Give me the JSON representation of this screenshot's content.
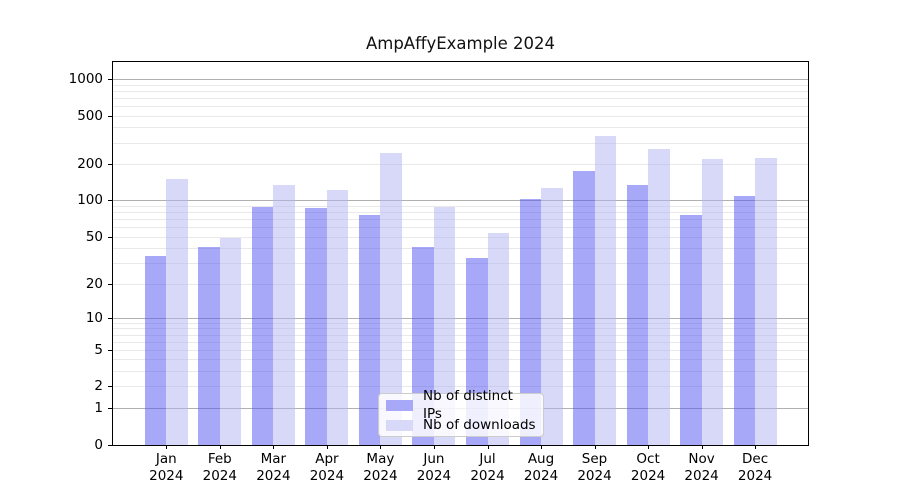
{
  "title": "AmpAffyExample 2024",
  "chart_data": {
    "type": "bar",
    "title": "AmpAffyExample 2024",
    "categories": [
      "Jan",
      "Feb",
      "Mar",
      "Apr",
      "May",
      "Jun",
      "Jul",
      "Aug",
      "Sep",
      "Oct",
      "Nov",
      "Dec"
    ],
    "category_year_line": "2024",
    "series": [
      {
        "name": "Nb of distinct IPs",
        "color": "#a8a8f8",
        "fill_rgba": "rgba(81,81,241,0.5)",
        "values": [
          34,
          41,
          88,
          86,
          76,
          41,
          33,
          103,
          176,
          133,
          75,
          108
        ]
      },
      {
        "name": "Nb of downloads",
        "color": "#d8d8f8",
        "fill_rgba": "rgba(177,177,241,0.5)",
        "values": [
          150,
          49,
          135,
          122,
          248,
          88,
          54,
          126,
          340,
          265,
          220,
          225
        ]
      }
    ],
    "y_ticks": [
      0,
      1,
      2,
      5,
      10,
      20,
      50,
      100,
      200,
      500,
      1000
    ],
    "scale": "log10(1+x)",
    "ylim": [
      0,
      1380
    ],
    "grid": "horizontal major+minor",
    "legend_position": "lower center"
  },
  "colors": {
    "major_grid": "#b0b0b0",
    "minor_grid": "#e9e9e9",
    "axis_frame": "#000000",
    "legend_border": "#cccccc"
  }
}
